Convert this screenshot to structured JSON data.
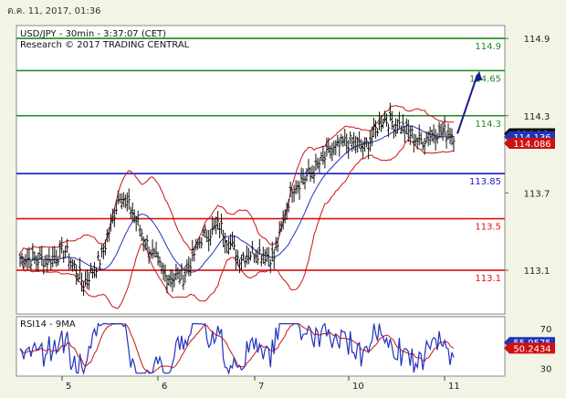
{
  "header": {
    "timestamp": "ต.ค. 11, 2017, 01:36"
  },
  "chart_data": {
    "type": "line",
    "title": "USD/JPY - 30min - 3:37:07 (CET)",
    "subtitle": "Research © 2017 TRADING CENTRAL",
    "price_ticks": [
      "114.9",
      "114.3",
      "113.7",
      "113.1"
    ],
    "date_ticks": [
      "5",
      "6",
      "7",
      "10",
      "11"
    ],
    "price_range": [
      112.76,
      115.0
    ],
    "levels": [
      {
        "label": "114.9",
        "value": 114.9,
        "color": "#1a8a1a"
      },
      {
        "label": "114.65",
        "value": 114.65,
        "color": "#1a8a1a"
      },
      {
        "label": "114.3",
        "value": 114.3,
        "color": "#1a8a1a"
      },
      {
        "label": "113.85",
        "value": 113.85,
        "color": "#1a1acc"
      },
      {
        "label": "113.5",
        "value": 113.5,
        "color": "#dd1111"
      },
      {
        "label": "113.1",
        "value": 113.1,
        "color": "#dd1111"
      }
    ],
    "price_badges": [
      {
        "label": "114.16",
        "value": 114.16,
        "bg": "#111111",
        "fg": "#ffffff"
      },
      {
        "label": "114.136",
        "value": 114.136,
        "bg": "#2233bb",
        "fg": "#ffffff"
      },
      {
        "label": "114.086",
        "value": 114.086,
        "bg": "#cc1111",
        "fg": "#ffffff"
      }
    ],
    "rsi": {
      "title": "RSI14 - 9MA",
      "ticks": [
        "70",
        "30"
      ],
      "range": [
        22,
        82
      ],
      "badges": [
        {
          "label": "55.9575",
          "value": 55.9575,
          "bg": "#2233bb",
          "fg": "#ffffff"
        },
        {
          "label": "50.2434",
          "value": 50.2434,
          "bg": "#cc1111",
          "fg": "#ffffff"
        }
      ]
    },
    "colors": {
      "background": "#ffffff",
      "bars": "#111111",
      "ma": "#2233bb",
      "bollinger": "#cc1111",
      "arrow": "#1a1a8c"
    }
  }
}
